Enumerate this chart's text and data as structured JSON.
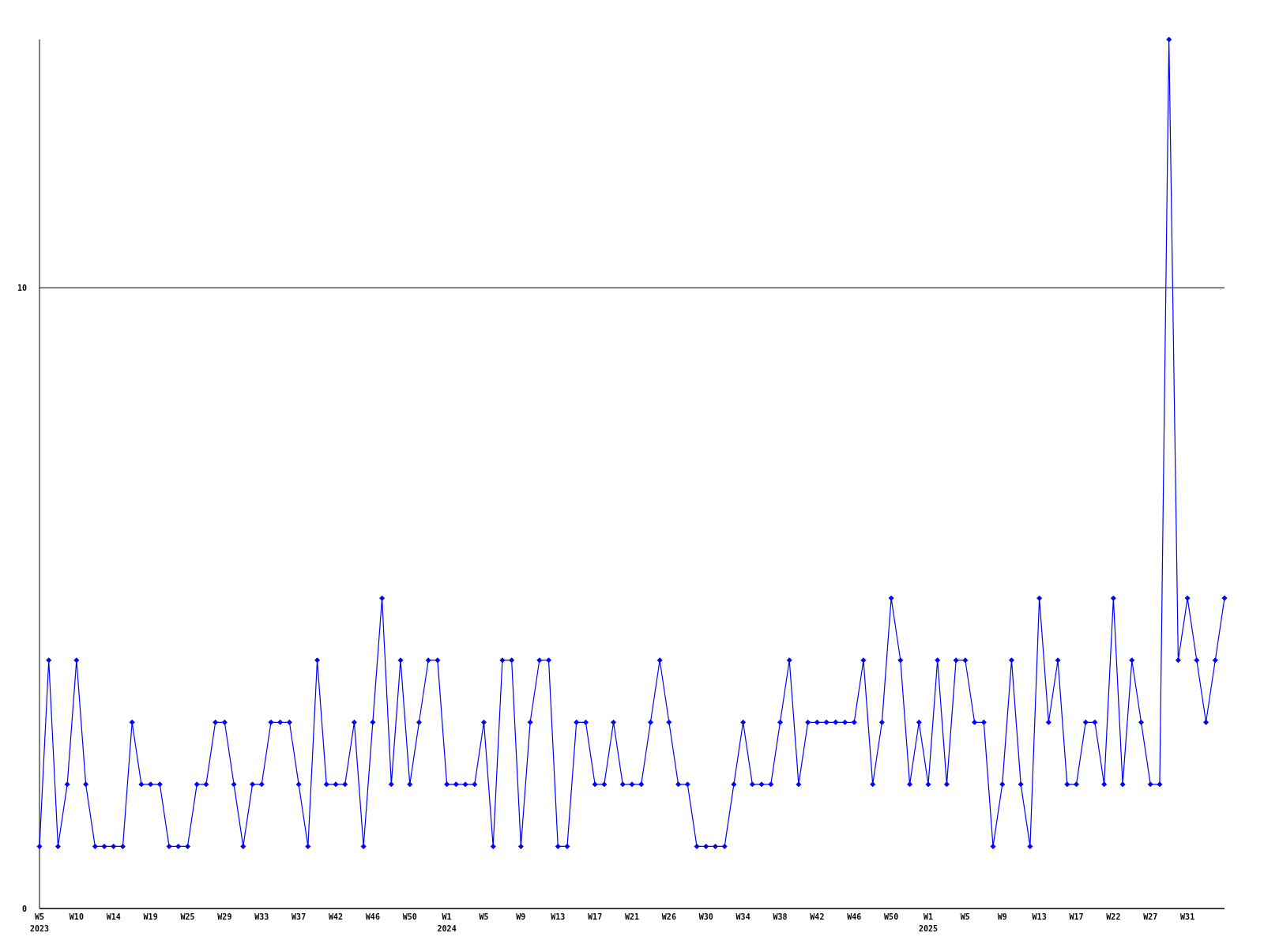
{
  "chart_data": {
    "type": "line",
    "categories": [
      "W5\n2023",
      null,
      null,
      null,
      "W10",
      null,
      null,
      null,
      "W14",
      null,
      null,
      null,
      "W19",
      null,
      null,
      null,
      "W25",
      null,
      null,
      null,
      "W29",
      null,
      null,
      null,
      "W33",
      null,
      null,
      null,
      "W37",
      null,
      null,
      null,
      "W42",
      null,
      null,
      null,
      "W46",
      null,
      null,
      null,
      "W50",
      null,
      null,
      null,
      "W1\n2024",
      null,
      null,
      null,
      "W5",
      null,
      null,
      null,
      "W9",
      null,
      null,
      null,
      "W13",
      null,
      null,
      null,
      "W17",
      null,
      null,
      null,
      "W21",
      null,
      null,
      null,
      "W26",
      null,
      null,
      null,
      "W30",
      null,
      null,
      null,
      "W34",
      null,
      null,
      null,
      "W38",
      null,
      null,
      null,
      "W42",
      null,
      null,
      null,
      "W46",
      null,
      null,
      null,
      "W50",
      null,
      null,
      null,
      "W1\n2025",
      null,
      null,
      null,
      "W5",
      null,
      null,
      null,
      "W9",
      null,
      null,
      null,
      "W13",
      null,
      null,
      null,
      "W17",
      null,
      null,
      null,
      "W22",
      null,
      null,
      null,
      "W27",
      null,
      null,
      null,
      "W31",
      null,
      null,
      null,
      null
    ],
    "series": [
      {
        "color": "#0000ff",
        "values": [
          1,
          4,
          1,
          2,
          4,
          2,
          1,
          1,
          1,
          1,
          3,
          2,
          2,
          2,
          1,
          1,
          1,
          2,
          2,
          3,
          3,
          2,
          1,
          2,
          2,
          3,
          3,
          3,
          2,
          1,
          4,
          2,
          2,
          2,
          3,
          1,
          3,
          5,
          2,
          4,
          2,
          3,
          4,
          4,
          2,
          2,
          2,
          2,
          3,
          1,
          4,
          4,
          1,
          3,
          4,
          4,
          1,
          1,
          3,
          3,
          2,
          2,
          3,
          2,
          2,
          2,
          3,
          4,
          3,
          2,
          2,
          1,
          1,
          1,
          1,
          2,
          3,
          2,
          2,
          2,
          3,
          4,
          2,
          3,
          3,
          3,
          3,
          3,
          3,
          4,
          2,
          3,
          5,
          4,
          2,
          3,
          2,
          4,
          2,
          4,
          4,
          3,
          3,
          1,
          2,
          4,
          2,
          1,
          5,
          3,
          4,
          2,
          2,
          3,
          3,
          2,
          5,
          2,
          4,
          3,
          2,
          2,
          14,
          4,
          5,
          4,
          3,
          4,
          5
        ]
      }
    ],
    "ylim": [
      0,
      14
    ],
    "yticks": [
      0,
      10
    ],
    "grid": "y",
    "marker": "diamond"
  }
}
